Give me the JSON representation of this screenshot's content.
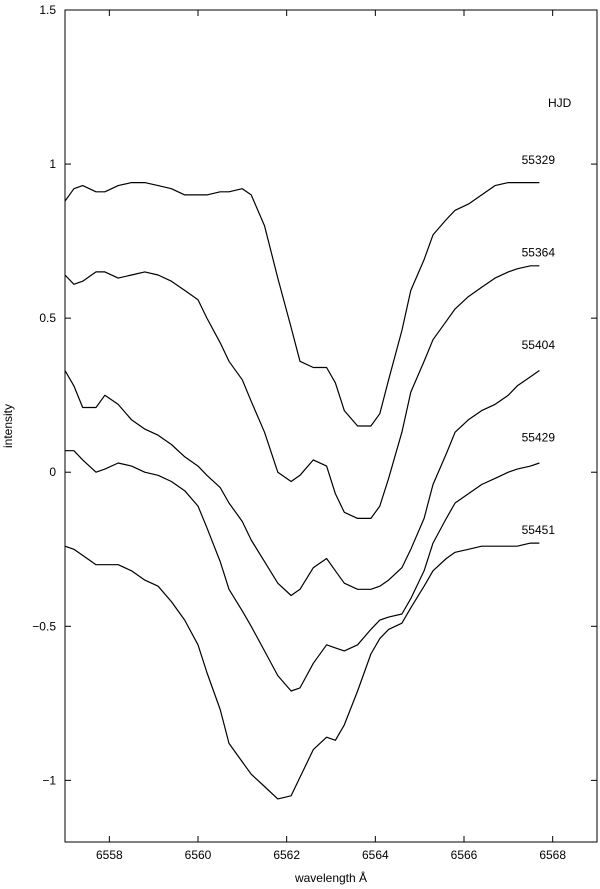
{
  "chart_data": {
    "type": "line",
    "title": "",
    "xlabel": "wavelength Å",
    "ylabel": "intensity",
    "xlim": [
      6557,
      6569
    ],
    "ylim": [
      -1.2,
      1.5
    ],
    "xticks": [
      6558,
      6560,
      6562,
      6564,
      6566,
      6568
    ],
    "yticks": [
      -1,
      -0.5,
      0,
      0.5,
      1,
      1.5
    ],
    "ytick_labels": [
      "−1",
      "−0.5",
      "0",
      "0.5",
      "1",
      "1.5"
    ],
    "legend_title": "HJD",
    "line_color": "#000000",
    "grid": false,
    "series": [
      {
        "name": "55329",
        "label_anchor": [
          6567.3,
          1.0
        ],
        "x": [
          6557,
          6557.2,
          6557.4,
          6557.7,
          6557.9,
          6558.2,
          6558.5,
          6558.8,
          6559.1,
          6559.4,
          6559.7,
          6560.0,
          6560.2,
          6560.5,
          6560.7,
          6561.0,
          6561.2,
          6561.5,
          6561.8,
          6562.1,
          6562.3,
          6562.6,
          6562.9,
          6563.1,
          6563.3,
          6563.6,
          6563.9,
          6564.1,
          6564.3,
          6564.6,
          6564.8,
          6565.1,
          6565.3,
          6565.6,
          6565.8,
          6566.1,
          6566.4,
          6566.7,
          6567.0,
          6567.2,
          6567.5,
          6567.7
        ],
        "y": [
          0.88,
          0.92,
          0.93,
          0.91,
          0.91,
          0.93,
          0.94,
          0.94,
          0.93,
          0.92,
          0.9,
          0.9,
          0.9,
          0.91,
          0.91,
          0.92,
          0.9,
          0.8,
          0.63,
          0.47,
          0.36,
          0.34,
          0.34,
          0.29,
          0.2,
          0.15,
          0.15,
          0.19,
          0.3,
          0.46,
          0.59,
          0.69,
          0.77,
          0.82,
          0.85,
          0.87,
          0.9,
          0.93,
          0.94,
          0.94,
          0.94,
          0.94
        ]
      },
      {
        "name": "55364",
        "label_anchor": [
          6567.3,
          0.7
        ],
        "x": [
          6557,
          6557.2,
          6557.4,
          6557.7,
          6557.9,
          6558.2,
          6558.5,
          6558.8,
          6559.1,
          6559.4,
          6559.7,
          6560.0,
          6560.2,
          6560.5,
          6560.7,
          6561.0,
          6561.2,
          6561.5,
          6561.8,
          6562.1,
          6562.3,
          6562.6,
          6562.9,
          6563.1,
          6563.3,
          6563.6,
          6563.9,
          6564.1,
          6564.3,
          6564.6,
          6564.8,
          6565.1,
          6565.3,
          6565.6,
          6565.8,
          6566.1,
          6566.4,
          6566.7,
          6567.0,
          6567.2,
          6567.5,
          6567.7
        ],
        "y": [
          0.64,
          0.61,
          0.62,
          0.65,
          0.65,
          0.63,
          0.64,
          0.65,
          0.64,
          0.62,
          0.59,
          0.56,
          0.5,
          0.42,
          0.36,
          0.3,
          0.23,
          0.13,
          0.0,
          -0.03,
          -0.01,
          0.04,
          0.02,
          -0.07,
          -0.13,
          -0.15,
          -0.15,
          -0.11,
          -0.02,
          0.13,
          0.26,
          0.36,
          0.43,
          0.49,
          0.53,
          0.57,
          0.6,
          0.63,
          0.65,
          0.66,
          0.67,
          0.67
        ]
      },
      {
        "name": "55404",
        "label_anchor": [
          6567.3,
          0.4
        ],
        "x": [
          6557,
          6557.2,
          6557.4,
          6557.7,
          6557.9,
          6558.2,
          6558.5,
          6558.8,
          6559.1,
          6559.4,
          6559.7,
          6560.0,
          6560.2,
          6560.5,
          6560.7,
          6561.0,
          6561.2,
          6561.5,
          6561.8,
          6562.1,
          6562.3,
          6562.6,
          6562.9,
          6563.1,
          6563.3,
          6563.6,
          6563.9,
          6564.1,
          6564.3,
          6564.6,
          6564.8,
          6565.1,
          6565.3,
          6565.6,
          6565.8,
          6566.1,
          6566.4,
          6566.7,
          6567.0,
          6567.2,
          6567.5,
          6567.7
        ],
        "y": [
          0.33,
          0.28,
          0.21,
          0.21,
          0.25,
          0.22,
          0.17,
          0.14,
          0.12,
          0.09,
          0.05,
          0.02,
          -0.01,
          -0.05,
          -0.1,
          -0.16,
          -0.22,
          -0.29,
          -0.36,
          -0.4,
          -0.38,
          -0.31,
          -0.28,
          -0.32,
          -0.36,
          -0.38,
          -0.38,
          -0.37,
          -0.35,
          -0.31,
          -0.25,
          -0.15,
          -0.04,
          0.06,
          0.13,
          0.17,
          0.2,
          0.22,
          0.25,
          0.28,
          0.31,
          0.33
        ]
      },
      {
        "name": "55429",
        "label_anchor": [
          6567.3,
          0.1
        ],
        "x": [
          6557,
          6557.2,
          6557.4,
          6557.7,
          6557.9,
          6558.2,
          6558.5,
          6558.8,
          6559.1,
          6559.4,
          6559.7,
          6560.0,
          6560.2,
          6560.5,
          6560.7,
          6561.0,
          6561.2,
          6561.5,
          6561.8,
          6562.1,
          6562.3,
          6562.6,
          6562.9,
          6563.1,
          6563.3,
          6563.6,
          6563.9,
          6564.1,
          6564.3,
          6564.6,
          6564.8,
          6565.1,
          6565.3,
          6565.6,
          6565.8,
          6566.1,
          6566.4,
          6566.7,
          6567.0,
          6567.2,
          6567.5,
          6567.7
        ],
        "y": [
          0.07,
          0.07,
          0.04,
          0.0,
          0.01,
          0.03,
          0.02,
          0.0,
          -0.01,
          -0.03,
          -0.06,
          -0.11,
          -0.18,
          -0.29,
          -0.38,
          -0.45,
          -0.5,
          -0.58,
          -0.66,
          -0.71,
          -0.7,
          -0.62,
          -0.56,
          -0.57,
          -0.58,
          -0.56,
          -0.51,
          -0.48,
          -0.47,
          -0.46,
          -0.41,
          -0.32,
          -0.23,
          -0.15,
          -0.1,
          -0.07,
          -0.04,
          -0.02,
          0.0,
          0.01,
          0.02,
          0.03
        ]
      },
      {
        "name": "55451",
        "label_anchor": [
          6567.3,
          -0.2
        ],
        "x": [
          6557,
          6557.2,
          6557.4,
          6557.7,
          6557.9,
          6558.2,
          6558.5,
          6558.8,
          6559.1,
          6559.4,
          6559.7,
          6560.0,
          6560.2,
          6560.5,
          6560.7,
          6561.0,
          6561.2,
          6561.5,
          6561.8,
          6562.1,
          6562.3,
          6562.6,
          6562.9,
          6563.1,
          6563.3,
          6563.6,
          6563.9,
          6564.1,
          6564.3,
          6564.6,
          6564.8,
          6565.1,
          6565.3,
          6565.6,
          6565.8,
          6566.1,
          6566.4,
          6566.7,
          6567.0,
          6567.2,
          6567.5,
          6567.7
        ],
        "y": [
          -0.24,
          -0.25,
          -0.27,
          -0.3,
          -0.3,
          -0.3,
          -0.32,
          -0.35,
          -0.37,
          -0.42,
          -0.48,
          -0.56,
          -0.65,
          -0.77,
          -0.88,
          -0.94,
          -0.98,
          -1.02,
          -1.06,
          -1.05,
          -0.99,
          -0.9,
          -0.86,
          -0.87,
          -0.82,
          -0.71,
          -0.59,
          -0.54,
          -0.51,
          -0.49,
          -0.44,
          -0.37,
          -0.32,
          -0.28,
          -0.26,
          -0.25,
          -0.24,
          -0.24,
          -0.24,
          -0.24,
          -0.23,
          -0.23
        ]
      }
    ]
  }
}
